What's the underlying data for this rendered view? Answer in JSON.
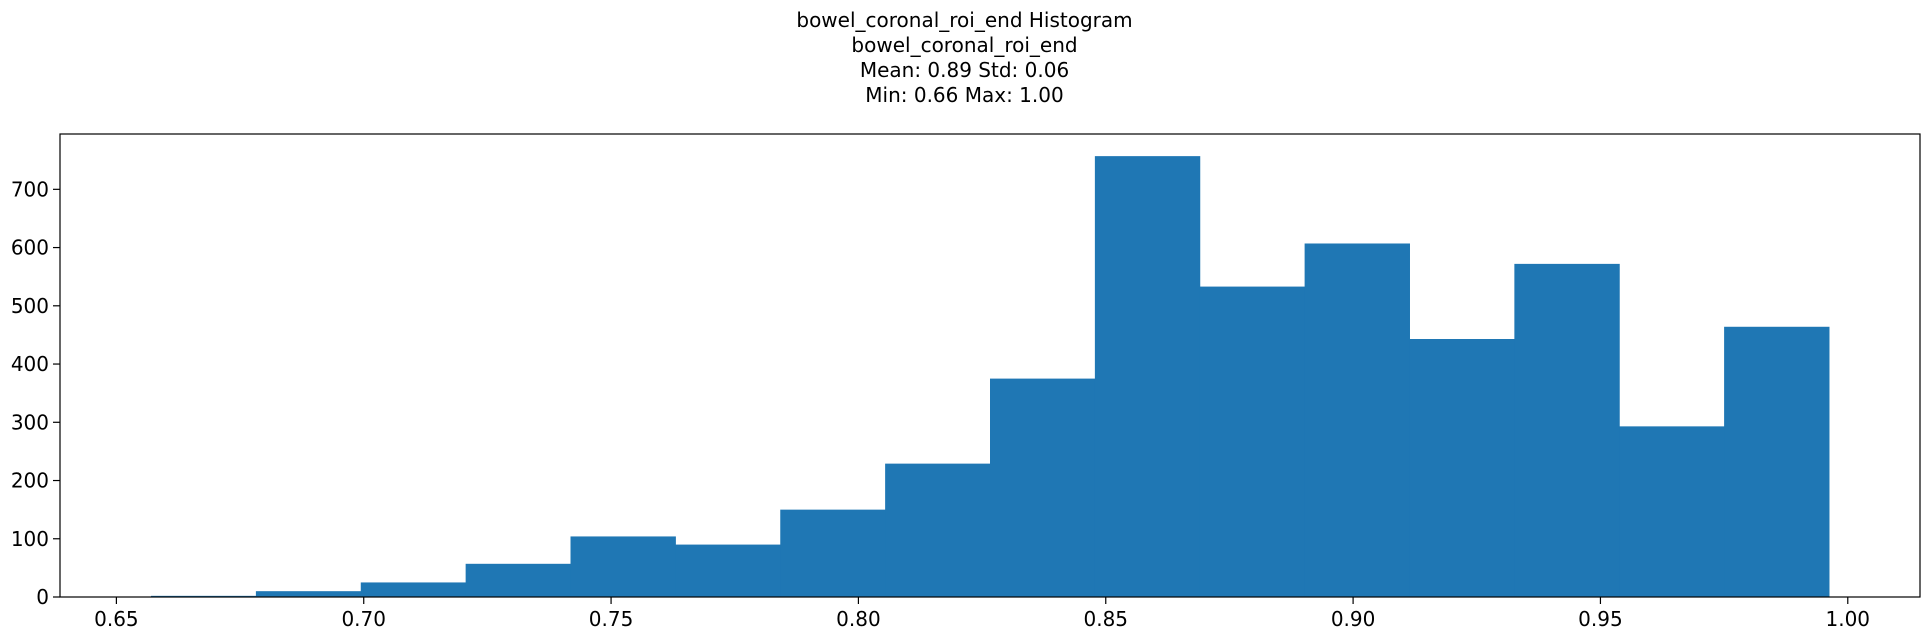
{
  "chart_data": {
    "type": "bar",
    "title": "bowel_coronal_roi_end Histogram",
    "subtitle_lines": [
      "bowel_coronal_roi_end",
      "Mean: 0.89 Std: 0.06",
      "Min: 0.66 Max: 1.00"
    ],
    "xlabel": "",
    "ylabel": "",
    "bin_edges": [
      0.657,
      0.6782,
      0.6994,
      0.7206,
      0.7418,
      0.763,
      0.7842,
      0.8054,
      0.8266,
      0.8478,
      0.869,
      0.8902,
      0.9114,
      0.9326,
      0.9538,
      0.975,
      0.9962
    ],
    "values": [
      2,
      10,
      25,
      57,
      104,
      90,
      150,
      229,
      375,
      757,
      533,
      607,
      443,
      572,
      293,
      464
    ],
    "xlim": [
      0.6386,
      1.0146
    ],
    "ylim": [
      0,
      795
    ],
    "xticks": [
      "0.65",
      "0.70",
      "0.75",
      "0.80",
      "0.85",
      "0.90",
      "0.95",
      "1.00"
    ],
    "yticks": [
      "0",
      "100",
      "200",
      "300",
      "400",
      "500",
      "600",
      "700"
    ],
    "grid": false,
    "bar_color": "#1f77b4"
  }
}
